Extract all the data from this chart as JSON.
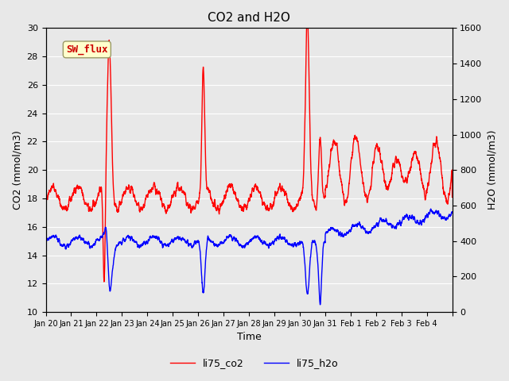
{
  "title": "CO2 and H2O",
  "xlabel": "Time",
  "ylabel_left": "CO2 (mmol/m3)",
  "ylabel_right": "H2O (mmol/m3)",
  "ylim_left": [
    10,
    30
  ],
  "ylim_right": [
    0,
    1600
  ],
  "yticks_left": [
    10,
    12,
    14,
    16,
    18,
    20,
    22,
    24,
    26,
    28,
    30
  ],
  "yticks_right": [
    0,
    200,
    400,
    600,
    800,
    1000,
    1200,
    1400,
    1600
  ],
  "bg_color": "#e8e8e8",
  "co2_color": "red",
  "h2o_color": "blue",
  "co2_label": "li75_co2",
  "h2o_label": "li75_h2o",
  "annotation_text": "SW_flux",
  "annotation_color": "#cc0000",
  "annotation_bg": "#ffffcc",
  "annotation_border": "#999966",
  "n_points": 3600,
  "xtick_positions": [
    0,
    1,
    2,
    3,
    4,
    5,
    6,
    7,
    8,
    9,
    10,
    11,
    12,
    13,
    14,
    15,
    16
  ],
  "xtick_labels": [
    "Jan 20",
    "Jan 21",
    "Jan 22",
    "Jan 23",
    "Jan 24",
    "Jan 25",
    "Jan 26",
    "Jan 27",
    "Jan 28",
    "Jan 29",
    "Jan 30",
    "Jan 31",
    "Feb 1",
    "Feb 2",
    "Feb 3",
    "Feb 4",
    ""
  ],
  "linewidth": 1.0
}
